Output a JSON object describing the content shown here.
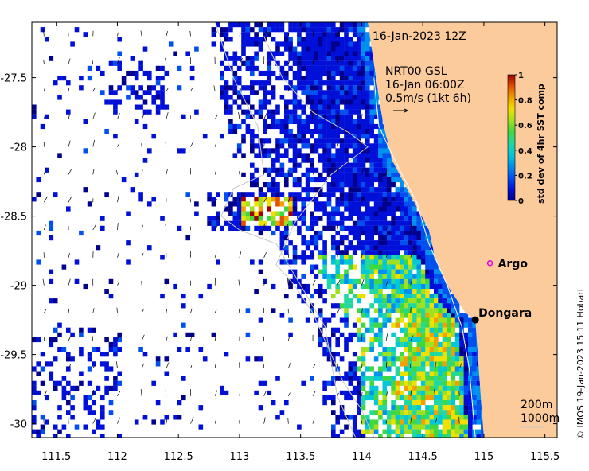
{
  "map": {
    "date_label": "16-Jan-2023 12Z",
    "current_source": "NRT00 GSL",
    "current_time": "16-Jan 06:00Z",
    "current_scale": "0.5m/s (1kt 6h)",
    "credit": "© IMOS 19-Jan-2023 15:11 Hobart",
    "depth_labels": [
      "200m",
      "1000m"
    ],
    "colors": {
      "land": "#fccb9c",
      "isobath": "#c8c8c8",
      "argo": "#e000e0"
    }
  },
  "places": [
    {
      "name": "Argo",
      "lon": 115.05,
      "lat": -28.84,
      "marker": "argo-circle"
    },
    {
      "name": "Dongara",
      "lon": 114.93,
      "lat": -29.25,
      "marker": "town-dot"
    }
  ],
  "colorbar": {
    "title": "std dev of 4hr SST comp",
    "min": 0,
    "max": 1,
    "ticks": [
      "0",
      "0.2",
      "0.4",
      "0.6",
      "0.8",
      "1"
    ],
    "colors": [
      "#00008c",
      "#0010d8",
      "#0050f0",
      "#0090f0",
      "#00c8d8",
      "#20d8a0",
      "#40d840",
      "#a0e020",
      "#f0e000",
      "#f0a000",
      "#e05000",
      "#a00000"
    ]
  },
  "chart_data": {
    "type": "heatmap",
    "x_axis": {
      "label": "",
      "range": [
        111.3,
        115.6
      ],
      "ticks": [
        111.5,
        112,
        112.5,
        113,
        113.5,
        114,
        114.5,
        115,
        115.5
      ]
    },
    "y_axis": {
      "label": "",
      "range": [
        -30.1,
        -27.1
      ],
      "ticks": [
        -27.5,
        -28,
        -28.5,
        -29,
        -29.5,
        -30
      ]
    },
    "tick_labels_x": [
      "111.5",
      "112",
      "112.5",
      "113",
      "113.5",
      "114",
      "114.5",
      "115",
      "115.5"
    ],
    "tick_labels_y": [
      "-27.5",
      "-28",
      "-28.5",
      "-29",
      "-29.5",
      "-30"
    ],
    "coastline": [
      [
        114.05,
        -27.1
      ],
      [
        114.1,
        -27.4
      ],
      [
        114.15,
        -27.7
      ],
      [
        114.18,
        -27.85
      ],
      [
        114.25,
        -28.1
      ],
      [
        114.4,
        -28.35
      ],
      [
        114.55,
        -28.6
      ],
      [
        114.6,
        -28.8
      ],
      [
        114.7,
        -29.0
      ],
      [
        114.85,
        -29.2
      ],
      [
        114.93,
        -29.25
      ],
      [
        114.95,
        -29.5
      ],
      [
        114.97,
        -29.75
      ],
      [
        115.0,
        -30.1
      ]
    ],
    "isobath_200m": [
      [
        114.1,
        -27.5
      ],
      [
        114.14,
        -27.85
      ],
      [
        114.3,
        -28.15
      ],
      [
        114.45,
        -28.4
      ],
      [
        114.55,
        -28.7
      ],
      [
        114.7,
        -29.0
      ],
      [
        114.82,
        -29.3
      ],
      [
        114.88,
        -29.6
      ],
      [
        114.93,
        -30.1
      ]
    ],
    "isobath_1000m": [
      [
        113.2,
        -27.2
      ],
      [
        113.35,
        -27.5
      ],
      [
        113.6,
        -27.75
      ],
      [
        113.9,
        -27.9
      ],
      [
        114.05,
        -28.0
      ],
      [
        113.75,
        -28.2
      ],
      [
        113.45,
        -28.55
      ],
      [
        113.3,
        -28.85
      ],
      [
        113.45,
        -29.0
      ],
      [
        113.6,
        -29.2
      ],
      [
        113.7,
        -29.4
      ],
      [
        113.85,
        -29.7
      ],
      [
        114.0,
        -29.9
      ],
      [
        114.1,
        -30.1
      ]
    ],
    "isobath_shelf_2": [
      [
        112.8,
        -27.1
      ],
      [
        112.95,
        -27.5
      ],
      [
        113.15,
        -27.85
      ],
      [
        113.2,
        -28.2
      ],
      [
        112.95,
        -28.3
      ],
      [
        112.85,
        -28.5
      ],
      [
        113.0,
        -28.6
      ],
      [
        113.3,
        -28.7
      ],
      [
        113.5,
        -29.0
      ],
      [
        113.7,
        -29.3
      ],
      [
        113.8,
        -29.8
      ],
      [
        113.95,
        -30.1
      ]
    ]
  }
}
